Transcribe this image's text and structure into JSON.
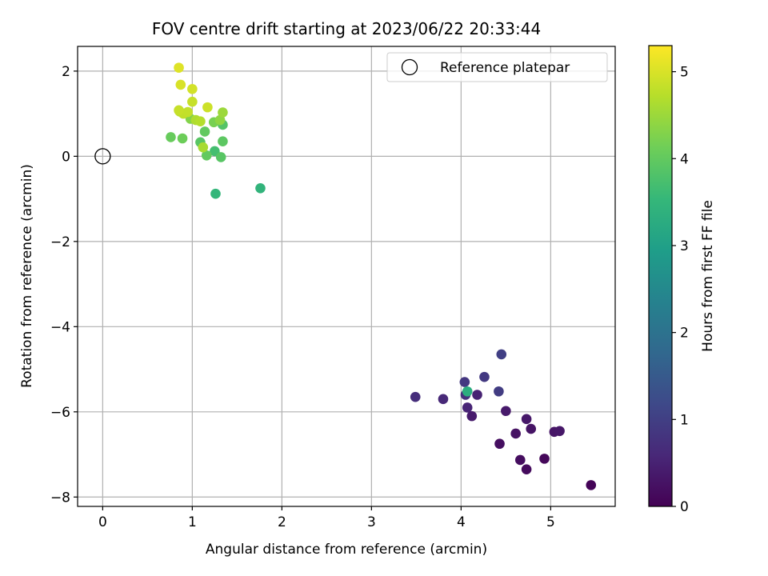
{
  "chart_data": {
    "type": "scatter",
    "title": "FOV centre drift starting at 2023/06/22 20:33:44",
    "xlabel": "Angular distance from reference (arcmin)",
    "ylabel": "Rotation from reference (arcmin)",
    "xlim": [
      -0.28,
      5.72
    ],
    "ylim": [
      -8.22,
      2.58
    ],
    "xticks": [
      0,
      1,
      2,
      3,
      4,
      5
    ],
    "yticks": [
      -8,
      -6,
      -4,
      -2,
      0,
      2
    ],
    "xtick_labels": [
      "0",
      "1",
      "2",
      "3",
      "4",
      "5"
    ],
    "ytick_labels": [
      "−8",
      "−6",
      "−4",
      "−2",
      "0",
      "2"
    ],
    "grid": true,
    "legend": {
      "position": "top-right",
      "entries": [
        {
          "label": "Reference platepar",
          "marker": "open-circle"
        }
      ]
    },
    "reference": {
      "x": 0,
      "y": 0
    },
    "colorbar": {
      "label": "Hours from first FF file",
      "range": [
        0,
        5.3
      ],
      "ticks": [
        0,
        1,
        2,
        3,
        4,
        5
      ],
      "tick_labels": [
        "0",
        "1",
        "2",
        "3",
        "4",
        "5"
      ],
      "colormap": "viridis"
    },
    "colormap_stops": [
      "#440154",
      "#482878",
      "#3e4989",
      "#31688e",
      "#26828e",
      "#1f9e89",
      "#35b779",
      "#6ece58",
      "#b5de2b",
      "#fde725"
    ],
    "points": [
      {
        "x": 5.45,
        "y": -7.72,
        "c": 0.05
      },
      {
        "x": 4.93,
        "y": -7.1,
        "c": 0.1
      },
      {
        "x": 4.73,
        "y": -7.35,
        "c": 0.15
      },
      {
        "x": 4.66,
        "y": -7.13,
        "c": 0.18
      },
      {
        "x": 4.43,
        "y": -6.75,
        "c": 0.2
      },
      {
        "x": 4.61,
        "y": -6.51,
        "c": 0.25
      },
      {
        "x": 4.78,
        "y": -6.4,
        "c": 0.28
      },
      {
        "x": 5.04,
        "y": -6.47,
        "c": 0.3
      },
      {
        "x": 5.1,
        "y": -6.45,
        "c": 0.33
      },
      {
        "x": 4.73,
        "y": -6.17,
        "c": 0.35
      },
      {
        "x": 4.5,
        "y": -5.98,
        "c": 0.38
      },
      {
        "x": 4.12,
        "y": -6.1,
        "c": 0.4
      },
      {
        "x": 4.07,
        "y": -5.9,
        "c": 0.55
      },
      {
        "x": 4.18,
        "y": -5.6,
        "c": 0.5
      },
      {
        "x": 3.8,
        "y": -5.7,
        "c": 0.6
      },
      {
        "x": 3.49,
        "y": -5.65,
        "c": 0.7
      },
      {
        "x": 4.05,
        "y": -5.6,
        "c": 0.75
      },
      {
        "x": 4.04,
        "y": -5.3,
        "c": 0.85
      },
      {
        "x": 4.26,
        "y": -5.18,
        "c": 0.9
      },
      {
        "x": 4.42,
        "y": -5.52,
        "c": 0.95
      },
      {
        "x": 4.45,
        "y": -4.65,
        "c": 1.0
      },
      {
        "x": 4.07,
        "y": -5.52,
        "c": 3.3
      },
      {
        "x": 1.76,
        "y": -0.75,
        "c": 3.45
      },
      {
        "x": 1.26,
        "y": -0.88,
        "c": 3.5
      },
      {
        "x": 1.25,
        "y": 0.12,
        "c": 3.7
      },
      {
        "x": 1.32,
        "y": -0.02,
        "c": 3.9
      },
      {
        "x": 1.16,
        "y": 0.02,
        "c": 4.0
      },
      {
        "x": 1.09,
        "y": 0.33,
        "c": 3.9
      },
      {
        "x": 1.14,
        "y": 0.58,
        "c": 4.0
      },
      {
        "x": 1.34,
        "y": 0.35,
        "c": 3.95
      },
      {
        "x": 1.34,
        "y": 0.74,
        "c": 3.85
      },
      {
        "x": 0.76,
        "y": 0.45,
        "c": 4.05
      },
      {
        "x": 0.89,
        "y": 0.42,
        "c": 4.1
      },
      {
        "x": 1.12,
        "y": 0.21,
        "c": 4.6
      },
      {
        "x": 1.24,
        "y": 0.8,
        "c": 4.2
      },
      {
        "x": 0.98,
        "y": 0.88,
        "c": 4.3
      },
      {
        "x": 1.31,
        "y": 0.85,
        "c": 4.4
      },
      {
        "x": 1.34,
        "y": 1.03,
        "c": 4.5
      },
      {
        "x": 1.04,
        "y": 0.85,
        "c": 4.65
      },
      {
        "x": 1.09,
        "y": 0.82,
        "c": 4.7
      },
      {
        "x": 0.86,
        "y": 1.05,
        "c": 4.75
      },
      {
        "x": 0.9,
        "y": 1.0,
        "c": 4.8
      },
      {
        "x": 0.95,
        "y": 1.04,
        "c": 4.82
      },
      {
        "x": 0.85,
        "y": 1.08,
        "c": 4.85
      },
      {
        "x": 1.0,
        "y": 1.28,
        "c": 4.85
      },
      {
        "x": 1.17,
        "y": 1.15,
        "c": 4.9
      },
      {
        "x": 1.0,
        "y": 1.58,
        "c": 4.95
      },
      {
        "x": 0.87,
        "y": 1.68,
        "c": 5.0
      },
      {
        "x": 0.85,
        "y": 2.08,
        "c": 5.05
      }
    ]
  }
}
